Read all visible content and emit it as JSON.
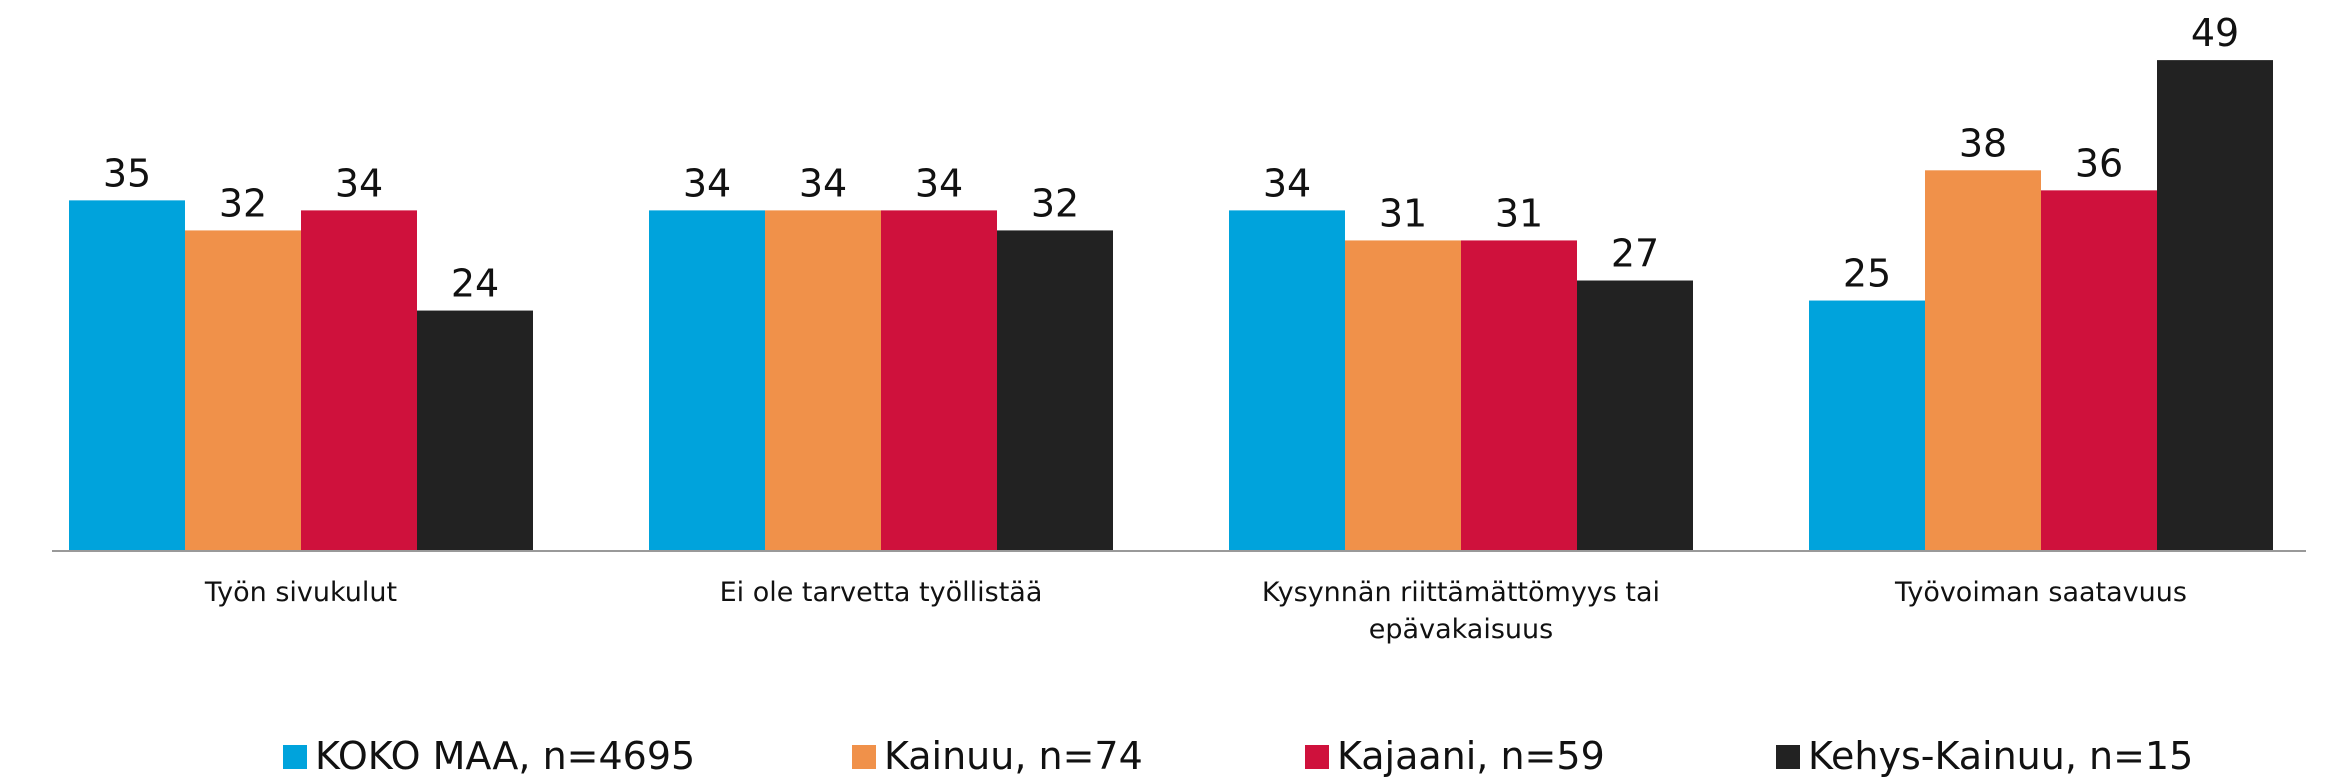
{
  "chart_data": {
    "type": "bar",
    "categories": [
      "Työn sivukulut",
      "Ei ole tarvetta työllistää",
      "Kysynnän riittämättömyys tai epävakaisuus",
      "Työvoiman saatavuus"
    ],
    "series": [
      {
        "name": "KOKO MAA, n=4695",
        "color": "#00a3dc",
        "values": [
          35,
          34,
          34,
          25
        ]
      },
      {
        "name": "Kainuu, n=74",
        "color": "#f0914a",
        "values": [
          32,
          34,
          31,
          38
        ]
      },
      {
        "name": "Kajaani, n=59",
        "color": "#cf113c",
        "values": [
          34,
          34,
          31,
          36
        ]
      },
      {
        "name": "Kehys-Kainuu, n=15",
        "color": "#222222",
        "values": [
          24,
          32,
          27,
          49
        ]
      }
    ],
    "ylim": [
      0,
      55
    ]
  }
}
